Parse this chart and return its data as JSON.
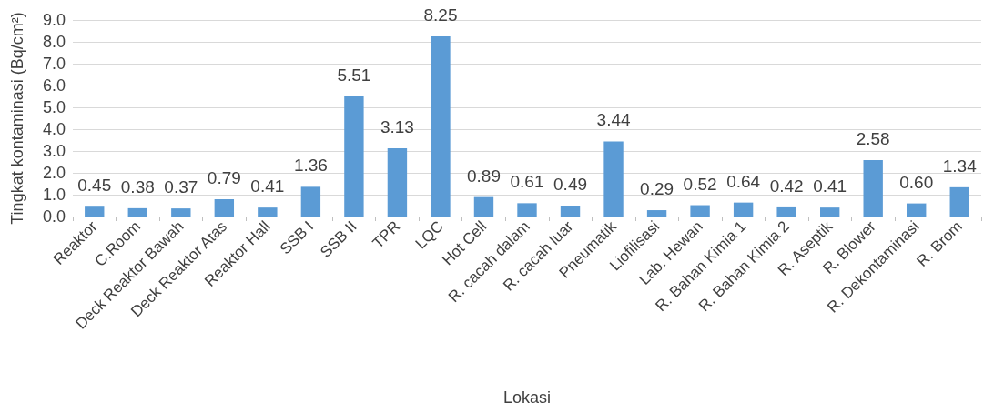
{
  "chart_data": {
    "type": "bar",
    "xlabel": "Lokasi",
    "ylabel": "Tingkat kontaminasi (Bq/cm²)",
    "categories": [
      "Reaktor",
      "C.Room",
      "Deck Reaktor Bawah",
      "Deck Reaktor Atas",
      "Reaktor Hall",
      "SSB I",
      "SSB II",
      "TPR",
      "LQC",
      "Hot Cell",
      "R. cacah dalam",
      "R. cacah luar",
      "Pneumatik",
      "Liofilisasi",
      "Lab. Hewan",
      "R. Bahan Kimia 1",
      "R. Bahan Kimia 2",
      "R. Aseptik",
      "R. Blower",
      "R. Dekontaminasi",
      "R. Brom"
    ],
    "values": [
      0.45,
      0.38,
      0.37,
      0.79,
      0.41,
      1.36,
      5.51,
      3.13,
      8.25,
      0.89,
      0.61,
      0.49,
      3.44,
      0.29,
      0.52,
      0.64,
      0.42,
      0.41,
      2.58,
      0.6,
      1.34
    ],
    "value_labels": [
      "0.45",
      "0.38",
      "0.37",
      "0.79",
      "0.41",
      "1.36",
      "5.51",
      "3.13",
      "8.25",
      "0.89",
      "0.61",
      "0.49",
      "3.44",
      "0.29",
      "0.52",
      "0.64",
      "0.42",
      "0.41",
      "2.58",
      "0.60",
      "1.34"
    ],
    "color": "#5b9bd5",
    "ylim": [
      0,
      9
    ],
    "yticks": [
      {
        "value": 0,
        "label": "0.0"
      },
      {
        "value": 1,
        "label": "1.0"
      },
      {
        "value": 2,
        "label": "2.0"
      },
      {
        "value": 3,
        "label": "3.0"
      },
      {
        "value": 4,
        "label": "4.0"
      },
      {
        "value": 5,
        "label": "5.0"
      },
      {
        "value": 6,
        "label": "6.0"
      },
      {
        "value": 7,
        "label": "7.0"
      },
      {
        "value": 8,
        "label": "8.0"
      },
      {
        "value": 9,
        "label": "9.0"
      }
    ],
    "grid": "y"
  }
}
